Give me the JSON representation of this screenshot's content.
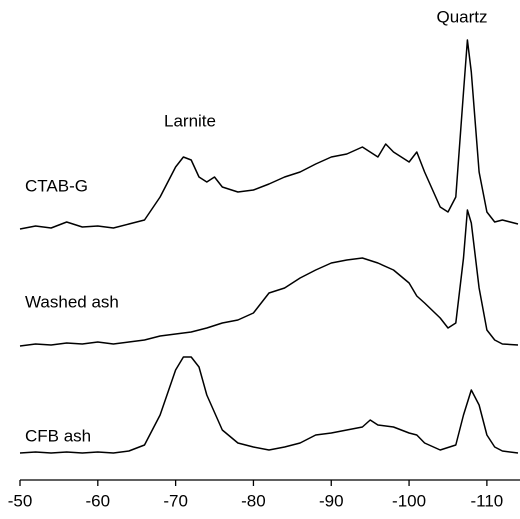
{
  "chart_data": {
    "type": "line",
    "annotations": [
      "Larnite",
      "Quartz"
    ],
    "xlim": [
      -50,
      -114
    ],
    "xticks": [
      -50,
      -60,
      -70,
      -80,
      -90,
      -100,
      -110
    ],
    "series": [
      {
        "name": "CFB ash",
        "color": "#000000",
        "x": [
          -50,
          -52,
          -54,
          -56,
          -58,
          -60,
          -62,
          -64,
          -66,
          -68,
          -70,
          -71,
          -72,
          -73,
          -74,
          -76,
          -78,
          -80,
          -82,
          -84,
          -86,
          -88,
          -90,
          -92,
          -94,
          -95,
          -96,
          -98,
          -100,
          -101,
          -102,
          -104,
          -106,
          -107,
          -108,
          -109,
          -110,
          -111,
          -112,
          -114
        ],
        "values": [
          2,
          3,
          2,
          3,
          2,
          3,
          2,
          4,
          10,
          40,
          85,
          98,
          98,
          88,
          60,
          25,
          12,
          8,
          5,
          8,
          12,
          20,
          22,
          25,
          28,
          35,
          30,
          28,
          22,
          20,
          12,
          5,
          10,
          40,
          65,
          50,
          20,
          8,
          4,
          2
        ]
      },
      {
        "name": "Washed ash",
        "color": "#000000",
        "x": [
          -50,
          -52,
          -54,
          -56,
          -58,
          -60,
          -62,
          -64,
          -66,
          -68,
          -70,
          -72,
          -74,
          -76,
          -78,
          -80,
          -82,
          -84,
          -86,
          -88,
          -90,
          -92,
          -94,
          -96,
          -98,
          -100,
          -101,
          -102,
          -104,
          -105,
          -106,
          -107,
          -107.5,
          -108,
          -109,
          -110,
          -111,
          -112,
          -114
        ],
        "values": [
          2,
          4,
          3,
          5,
          4,
          6,
          4,
          6,
          8,
          12,
          14,
          16,
          20,
          25,
          28,
          35,
          55,
          60,
          70,
          78,
          85,
          88,
          90,
          85,
          78,
          65,
          52,
          45,
          30,
          20,
          25,
          90,
          138,
          125,
          60,
          18,
          8,
          4,
          3
        ]
      },
      {
        "name": "CTAB-G",
        "color": "#000000",
        "x": [
          -50,
          -52,
          -54,
          -56,
          -58,
          -60,
          -62,
          -64,
          -66,
          -68,
          -70,
          -71,
          -72,
          -73,
          -74,
          -75,
          -76,
          -78,
          -80,
          -82,
          -84,
          -86,
          -88,
          -90,
          -92,
          -94,
          -96,
          -97,
          -98,
          -100,
          -101,
          -102,
          -104,
          -105,
          -106,
          -107,
          -107.5,
          -108,
          -109,
          -110,
          -111,
          -112,
          -114
        ],
        "values": [
          3,
          6,
          4,
          10,
          5,
          6,
          4,
          8,
          12,
          35,
          65,
          75,
          72,
          55,
          50,
          55,
          45,
          40,
          42,
          48,
          55,
          60,
          68,
          75,
          78,
          85,
          75,
          88,
          80,
          70,
          80,
          60,
          25,
          20,
          35,
          140,
          192,
          160,
          60,
          20,
          10,
          12,
          8
        ]
      }
    ]
  }
}
